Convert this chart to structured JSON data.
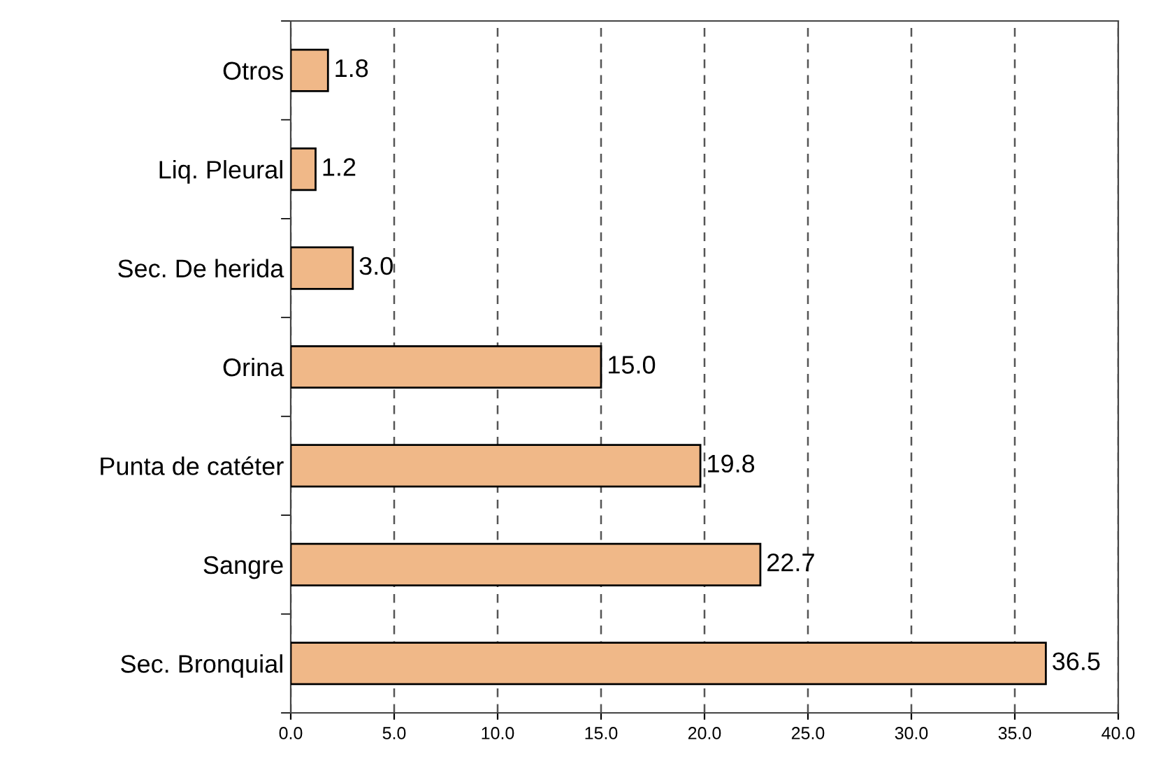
{
  "chart_data": {
    "type": "bar",
    "orientation": "horizontal",
    "categories": [
      "Otros",
      "Liq. Pleural",
      "Sec. De herida",
      "Orina",
      "Punta de catéter",
      "Sangre",
      "Sec. Bronquial"
    ],
    "values": [
      1.8,
      1.2,
      3.0,
      15.0,
      19.8,
      22.7,
      36.5
    ],
    "value_labels": [
      "1.8",
      "1.2",
      "3.0",
      "15.0",
      "19.8",
      "22.7",
      "36.5"
    ],
    "color": "#f0b888",
    "xlim": [
      0,
      40
    ],
    "xticks": [
      {
        "value": 0,
        "label": "0.0"
      },
      {
        "value": 5,
        "label": "5.0"
      },
      {
        "value": 10,
        "label": "10.0"
      },
      {
        "value": 15,
        "label": "15.0"
      },
      {
        "value": 20,
        "label": "20.0"
      },
      {
        "value": 25,
        "label": "25.0"
      },
      {
        "value": 30,
        "label": "30.0"
      },
      {
        "value": 35,
        "label": "35.0"
      },
      {
        "value": 40,
        "label": "40.0"
      }
    ],
    "grid": "x",
    "line_style": "dashed"
  }
}
